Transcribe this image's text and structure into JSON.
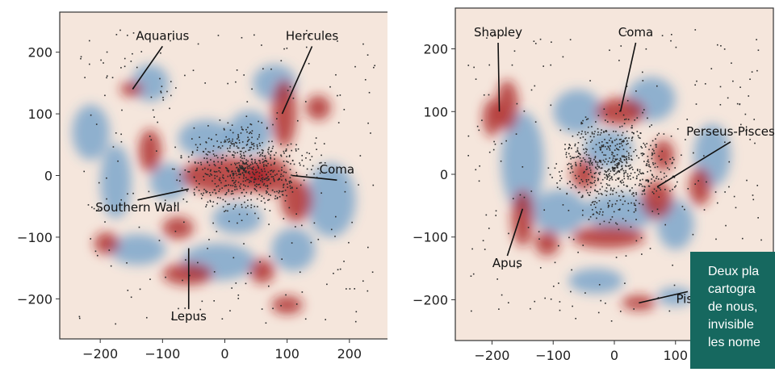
{
  "colors": {
    "overdensity": "#a7191d",
    "underdensity": "#3b83c2",
    "background": "#f5e6dc",
    "galaxy_points": "#2b2b2b",
    "caption_bg": "#16685f"
  },
  "chart_data": [
    {
      "type": "scatter",
      "title": "",
      "xlabel": "",
      "ylabel": "",
      "xlim": [
        -265,
        265
      ],
      "ylim": [
        -265,
        265
      ],
      "xticks": [
        -200,
        -100,
        0,
        100,
        200
      ],
      "yticks": [
        200,
        100,
        0,
        -100,
        -200
      ],
      "xtick_labels": [
        "−200",
        "−100",
        "0",
        "100",
        "200"
      ],
      "ytick_labels": [
        "200",
        "100",
        "0",
        "−100",
        "−200"
      ],
      "colormap": "diverging red-blue",
      "annotations": [
        {
          "text": "Aquarius",
          "x": -100,
          "y": 220,
          "point_x": -148,
          "point_y": 140
        },
        {
          "text": "Hercules",
          "x": 140,
          "y": 220,
          "point_x": 92,
          "point_y": 100
        },
        {
          "text": "Coma",
          "x": 180,
          "y": 3,
          "point_x": 108,
          "point_y": 0
        },
        {
          "text": "Southern Wall",
          "x": -140,
          "y": -58,
          "point_x": -58,
          "point_y": -22
        },
        {
          "text": "Lepus",
          "x": -58,
          "y": -235,
          "point_x": -58,
          "point_y": -118
        }
      ]
    },
    {
      "type": "scatter",
      "title": "",
      "xlabel": "",
      "ylabel": "",
      "xlim": [
        -260,
        260
      ],
      "ylim": [
        -265,
        265
      ],
      "xticks": [
        -200,
        -100,
        0,
        100,
        200
      ],
      "yticks": [
        200,
        100,
        0,
        -100,
        -200
      ],
      "xtick_labels": [
        "−200",
        "−100",
        "0",
        "100",
        "200"
      ],
      "ytick_labels": [
        "200",
        "100",
        "0",
        "−100",
        "−200"
      ],
      "colormap": "diverging red-blue",
      "annotations": [
        {
          "text": "Shapley",
          "x": -190,
          "y": 220,
          "point_x": -188,
          "point_y": 100
        },
        {
          "text": "Coma",
          "x": 35,
          "y": 220,
          "point_x": 10,
          "point_y": 100
        },
        {
          "text": "Perseus-Pisces",
          "x": 190,
          "y": 62,
          "point_x": 70,
          "point_y": -20
        },
        {
          "text": "Apus",
          "x": -175,
          "y": -148,
          "point_x": -150,
          "point_y": -55
        },
        {
          "text": "Pisc",
          "x": 120,
          "y": -205,
          "point_x": 40,
          "point_y": -205
        }
      ]
    }
  ],
  "caption": {
    "lines": [
      "Deux pla",
      "cartogra",
      "de nous,",
      "invisible",
      "les nome"
    ]
  }
}
